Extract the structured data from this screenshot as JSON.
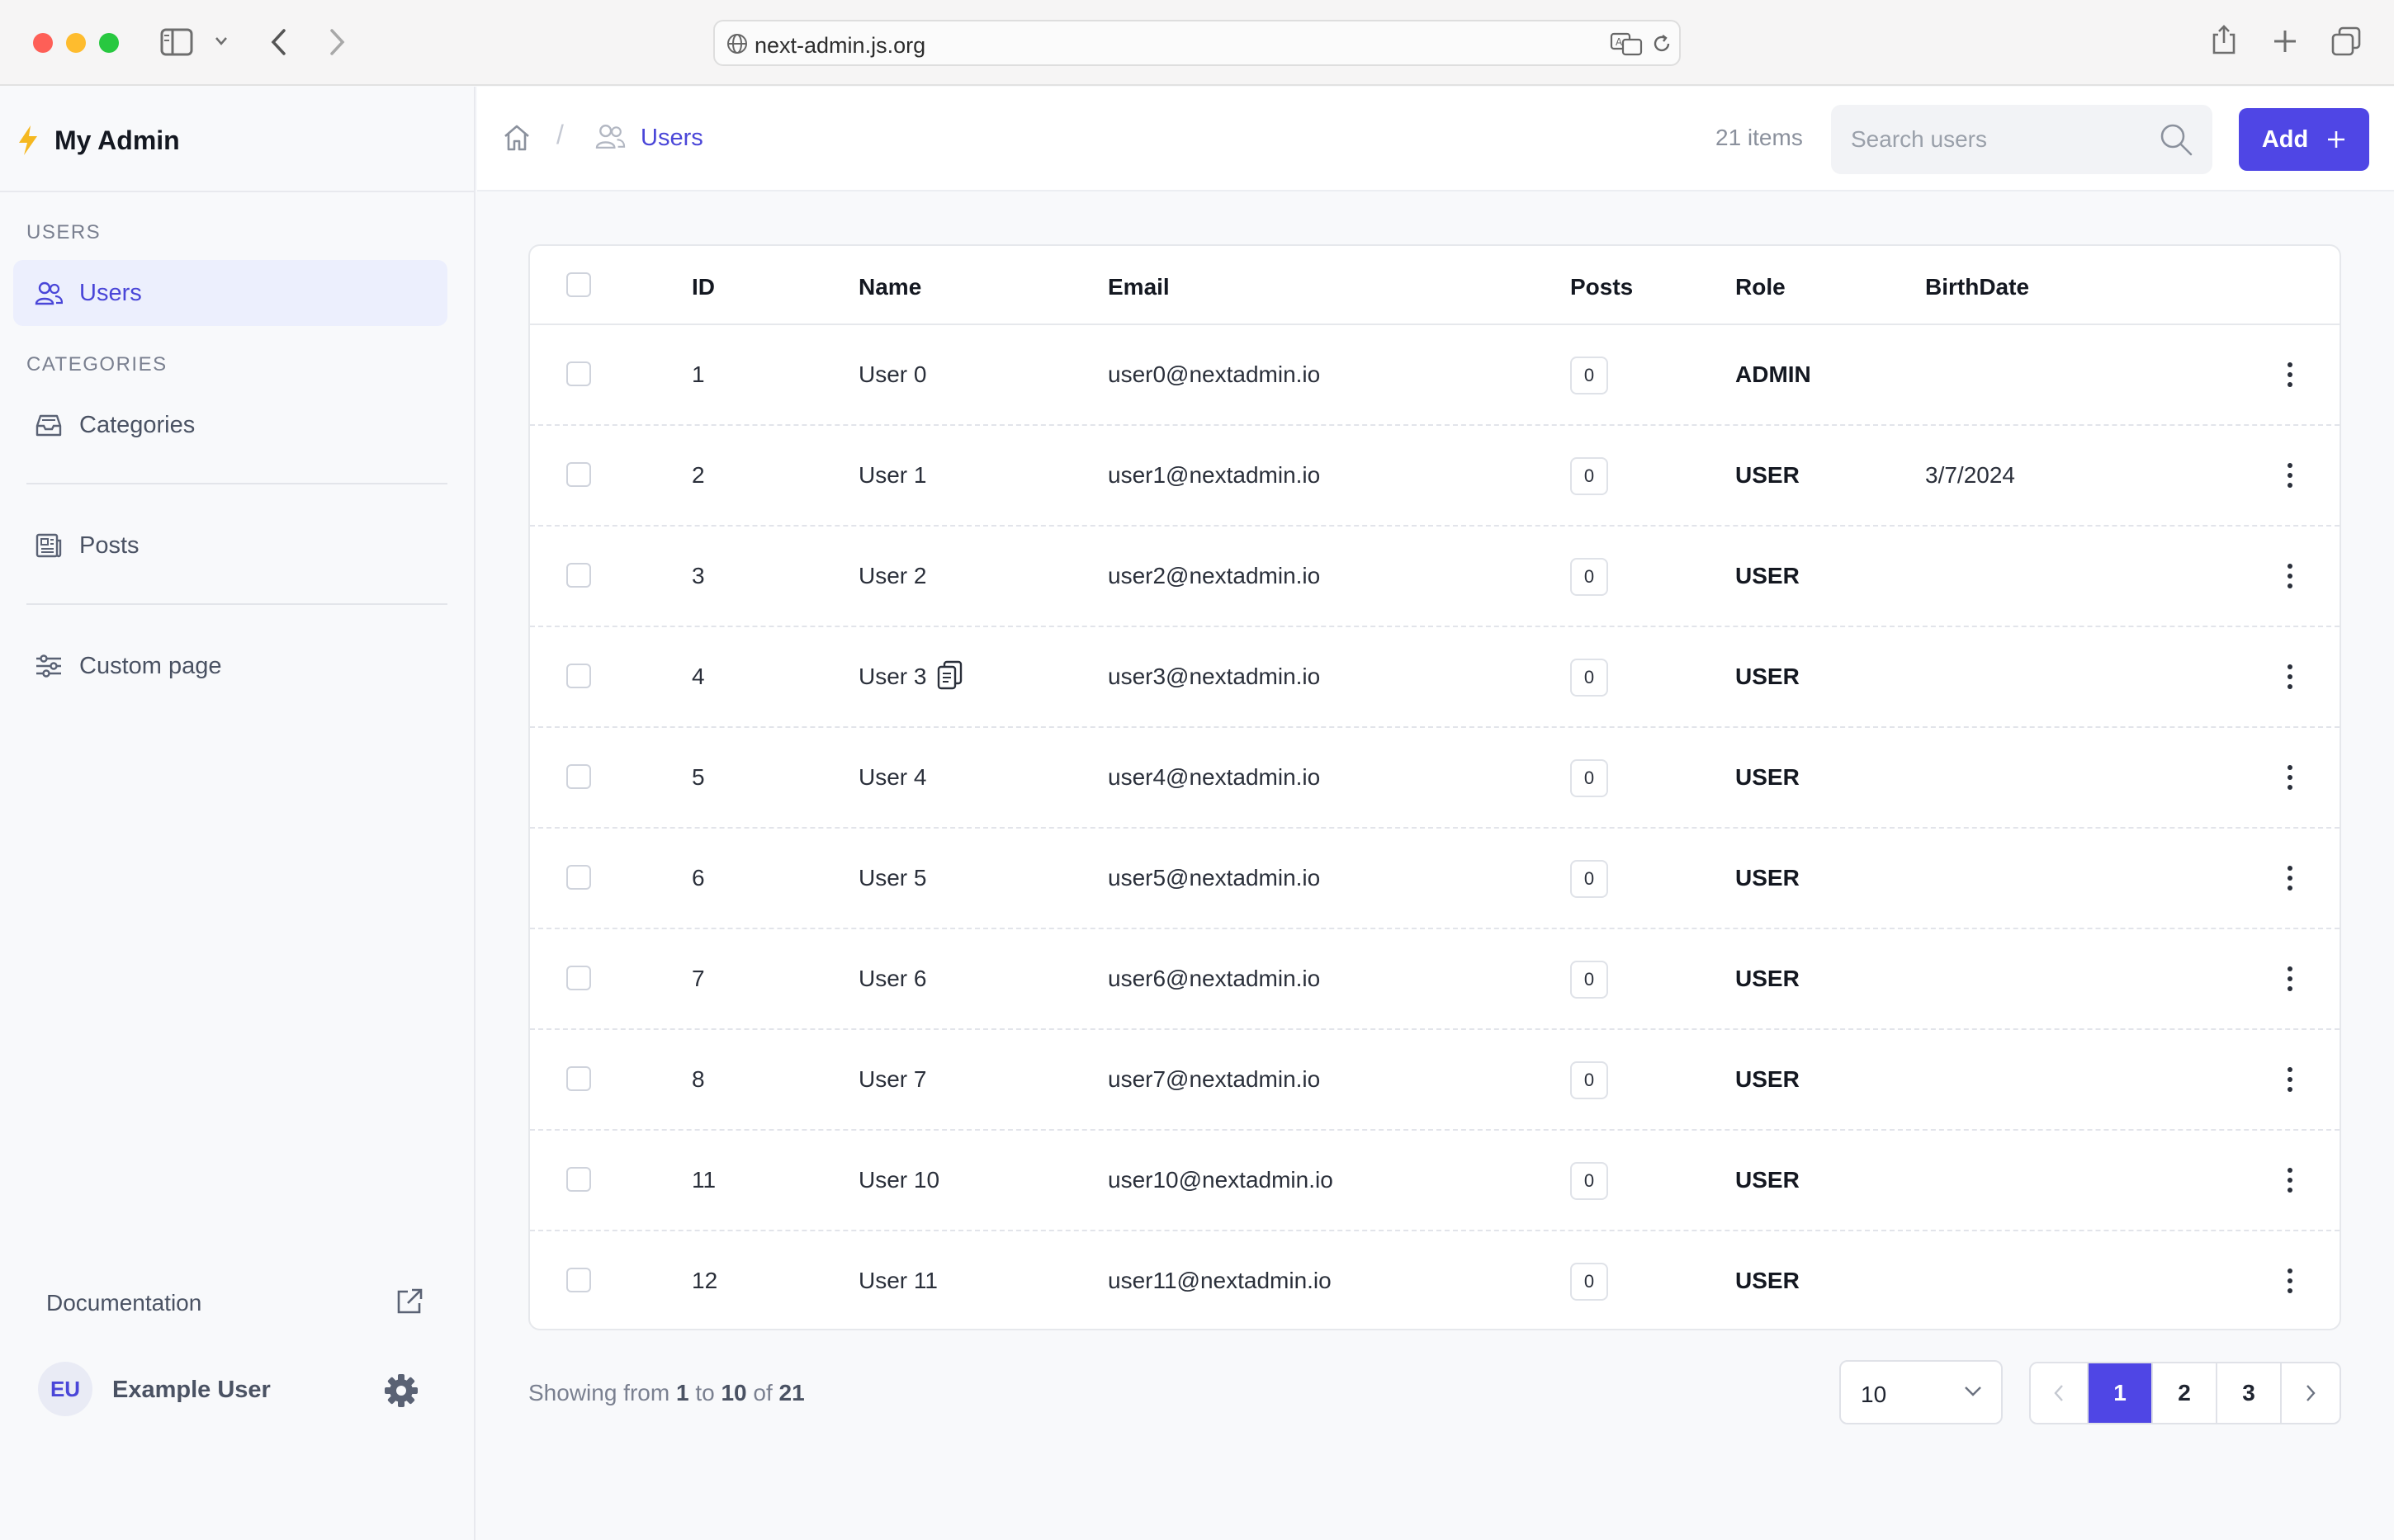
{
  "browser": {
    "url": "next-admin.js.org"
  },
  "sidebar": {
    "brand": "My Admin",
    "sections": [
      {
        "label": "USERS",
        "items": [
          {
            "label": "Users",
            "icon": "users-icon",
            "active": true
          }
        ]
      },
      {
        "label": "CATEGORIES",
        "items": [
          {
            "label": "Categories",
            "icon": "inbox-icon"
          }
        ]
      }
    ],
    "extra_items": [
      {
        "label": "Posts",
        "icon": "newspaper-icon"
      },
      {
        "label": "Custom page",
        "icon": "sliders-icon"
      }
    ],
    "documentation_label": "Documentation",
    "user": {
      "initials": "EU",
      "name": "Example User"
    }
  },
  "header": {
    "breadcrumb": {
      "current": "Users"
    },
    "items_count": "21 items",
    "search_placeholder": "Search users",
    "add_label": "Add"
  },
  "table": {
    "columns": [
      "ID",
      "Name",
      "Email",
      "Posts",
      "Role",
      "BirthDate"
    ],
    "rows": [
      {
        "id": "1",
        "name": "User 0",
        "email": "user0@nextadmin.io",
        "posts": "0",
        "role": "ADMIN",
        "birthdate": ""
      },
      {
        "id": "2",
        "name": "User 1",
        "email": "user1@nextadmin.io",
        "posts": "0",
        "role": "USER",
        "birthdate": "3/7/2024"
      },
      {
        "id": "3",
        "name": "User 2",
        "email": "user2@nextadmin.io",
        "posts": "0",
        "role": "USER",
        "birthdate": ""
      },
      {
        "id": "4",
        "name": "User 3",
        "email": "user3@nextadmin.io",
        "posts": "0",
        "role": "USER",
        "birthdate": ""
      },
      {
        "id": "5",
        "name": "User 4",
        "email": "user4@nextadmin.io",
        "posts": "0",
        "role": "USER",
        "birthdate": ""
      },
      {
        "id": "6",
        "name": "User 5",
        "email": "user5@nextadmin.io",
        "posts": "0",
        "role": "USER",
        "birthdate": ""
      },
      {
        "id": "7",
        "name": "User 6",
        "email": "user6@nextadmin.io",
        "posts": "0",
        "role": "USER",
        "birthdate": ""
      },
      {
        "id": "8",
        "name": "User 7",
        "email": "user7@nextadmin.io",
        "posts": "0",
        "role": "USER",
        "birthdate": ""
      },
      {
        "id": "11",
        "name": "User 10",
        "email": "user10@nextadmin.io",
        "posts": "0",
        "role": "USER",
        "birthdate": ""
      },
      {
        "id": "12",
        "name": "User 11",
        "email": "user11@nextadmin.io",
        "posts": "0",
        "role": "USER",
        "birthdate": ""
      }
    ]
  },
  "footer": {
    "showing_prefix": "Showing from",
    "from": "1",
    "to_word": "to",
    "to": "10",
    "of_word": "of",
    "total": "21",
    "per_page": "10",
    "pages": [
      "1",
      "2",
      "3"
    ],
    "current_page": "1"
  },
  "colors": {
    "accent": "#4f46e5",
    "active_nav_bg": "#eceffd",
    "brand_bolt": "#f5b820"
  }
}
